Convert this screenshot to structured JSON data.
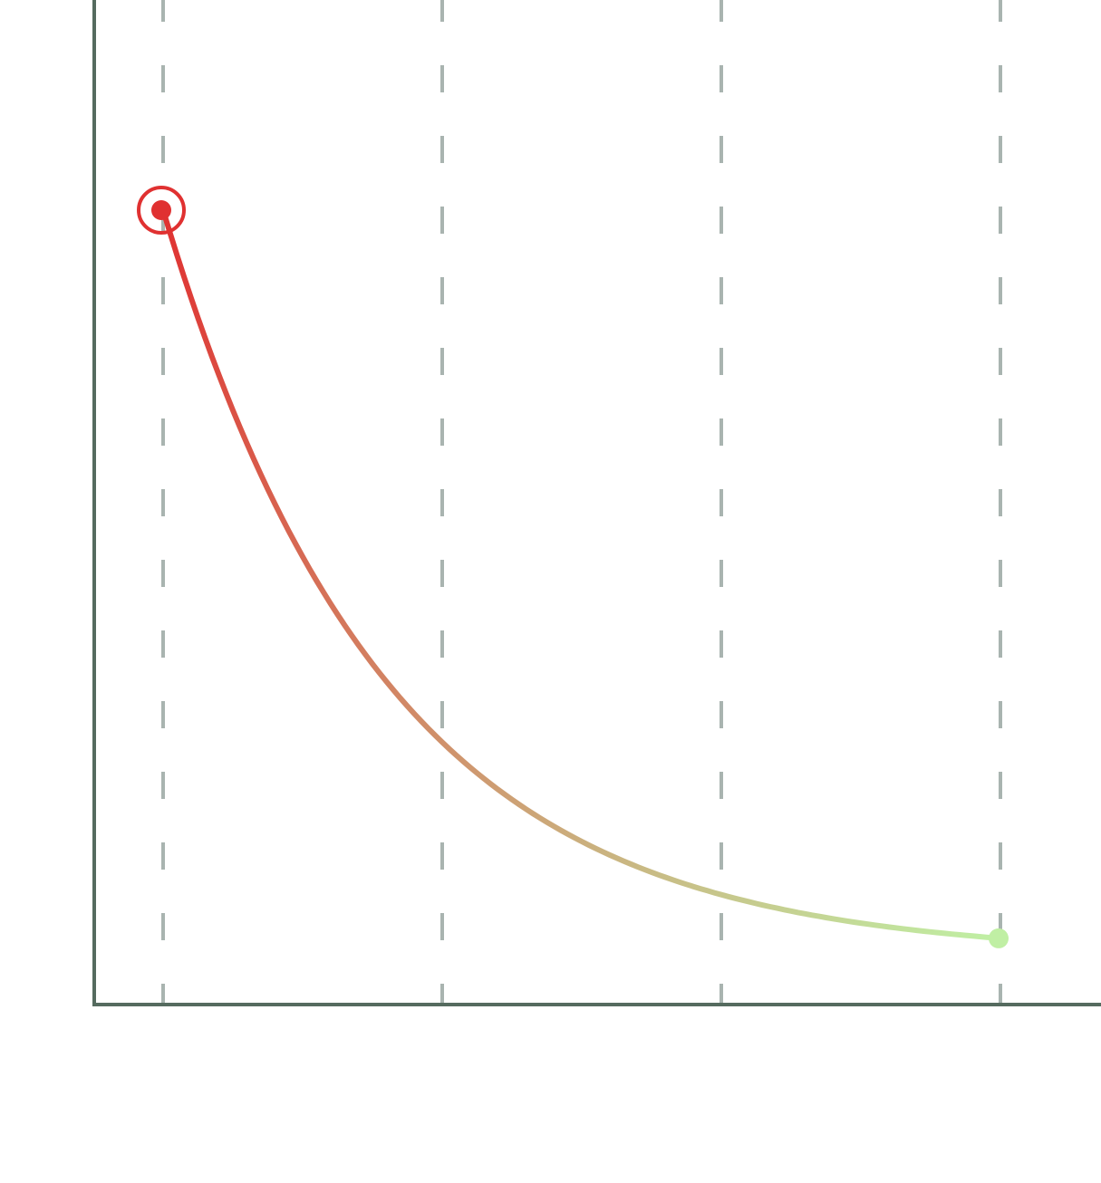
{
  "chart_data": {
    "type": "line",
    "title": "",
    "xlabel": "",
    "ylabel": "",
    "x_ticks": [
      0,
      1,
      2,
      3
    ],
    "xlim": [
      -0.25,
      3.6
    ],
    "ylim": [
      0,
      1.2
    ],
    "grid": {
      "vertical": true,
      "horizontal": false,
      "style": "dashed"
    },
    "legend": "none",
    "curve": {
      "kind": "exponential-decay",
      "start": {
        "x": 0,
        "y": 0.96
      },
      "end": {
        "x": 3,
        "y": 0.08
      },
      "points": [
        {
          "x": 0.0,
          "y": 0.96
        },
        {
          "x": 0.25,
          "y": 0.73
        },
        {
          "x": 0.5,
          "y": 0.56
        },
        {
          "x": 0.75,
          "y": 0.44
        },
        {
          "x": 1.0,
          "y": 0.31
        },
        {
          "x": 1.5,
          "y": 0.19
        },
        {
          "x": 2.0,
          "y": 0.13
        },
        {
          "x": 2.5,
          "y": 0.095
        },
        {
          "x": 3.0,
          "y": 0.08
        }
      ],
      "highlighted_point": "start"
    },
    "colors": {
      "start": "#e03131",
      "end": "#c0efa4",
      "grid": "#a9b4b0",
      "axis": "#556b5f"
    }
  }
}
